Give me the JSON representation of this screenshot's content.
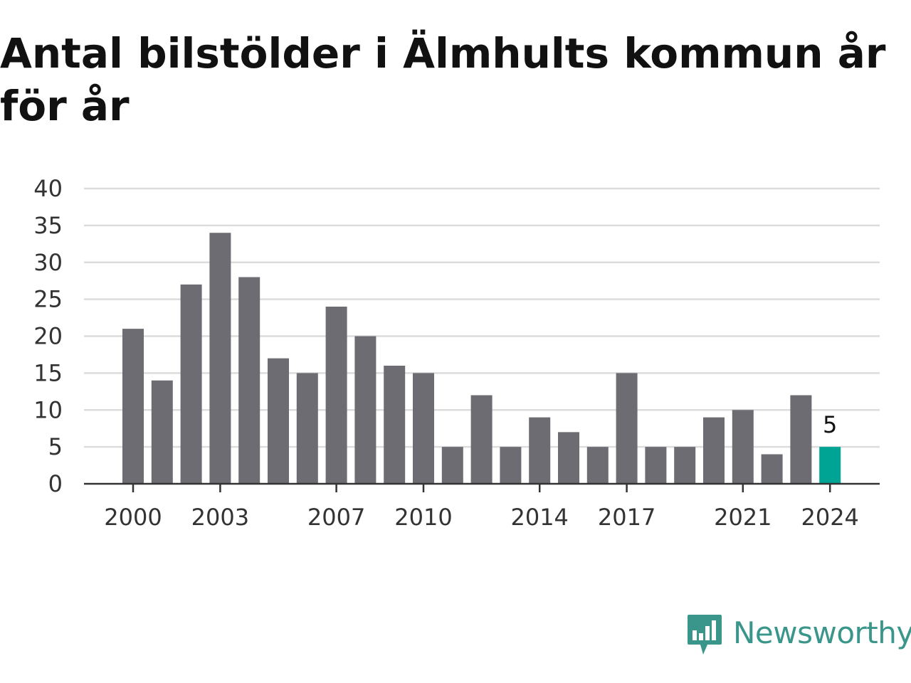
{
  "title": "Antal bilstölder i Älmhults kommun år för år",
  "brand": {
    "name": "Newsworthy",
    "color": "#3a968a"
  },
  "colors": {
    "bar": "#6d6c72",
    "highlight": "#00a495",
    "grid": "#dcdcdc",
    "axis": "#333333"
  },
  "chart_data": {
    "type": "bar",
    "title": "Antal bilstölder i Älmhults kommun år för år",
    "xlabel": "",
    "ylabel": "",
    "categories": [
      "2000",
      "2001",
      "2002",
      "2003",
      "2004",
      "2005",
      "2006",
      "2007",
      "2008",
      "2009",
      "2010",
      "2011",
      "2012",
      "2013",
      "2014",
      "2015",
      "2016",
      "2017",
      "2018",
      "2019",
      "2020",
      "2021",
      "2022",
      "2023",
      "2024"
    ],
    "values": [
      21,
      14,
      27,
      34,
      28,
      17,
      15,
      24,
      20,
      16,
      15,
      5,
      12,
      5,
      9,
      7,
      5,
      15,
      5,
      5,
      9,
      10,
      4,
      12,
      5
    ],
    "x_tick_labels": [
      "2000",
      "2003",
      "2007",
      "2010",
      "2014",
      "2017",
      "2021",
      "2024"
    ],
    "y_ticks": [
      0,
      5,
      10,
      15,
      20,
      25,
      30,
      35,
      40
    ],
    "ylim": [
      0,
      40
    ],
    "grid": true,
    "highlight_category": "2024",
    "value_labels": [
      {
        "category": "2024",
        "text": "5"
      }
    ]
  }
}
